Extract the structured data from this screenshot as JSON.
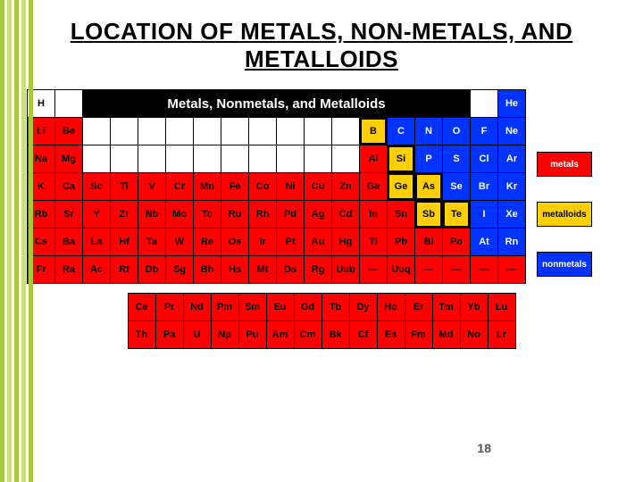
{
  "slide": {
    "title": "LOCATION OF METALS, NON-METALS, AND METALLOIDS",
    "page_number": "18",
    "chart_title": "Metals, Nonmetals, and Metalloids"
  },
  "colors": {
    "metal": "#ff0000",
    "nonmetal": "#0033ff",
    "metalloid": "#ffcf00",
    "hydrogen": "#ffffff",
    "bg_black": "#000000",
    "text_black": "#000000",
    "text_white": "#ffffff",
    "stripe_a": "#a8c93a",
    "stripe_b": "#c7e07a"
  },
  "stripes": [
    0,
    8,
    16,
    24,
    32
  ],
  "legend": [
    {
      "label": "metals",
      "color_key": "metal",
      "text": "text_white"
    },
    {
      "label": "metalloids",
      "color_key": "metalloid",
      "text": "text_black"
    },
    {
      "label": "nonmetals",
      "color_key": "nonmetal",
      "text": "text_white"
    }
  ],
  "main_grid": {
    "cols": 18,
    "rows": 7
  },
  "elements": [
    {
      "s": "H",
      "r": 1,
      "c": 1,
      "cat": "hydrogen"
    },
    {
      "s": "He",
      "r": 1,
      "c": 18,
      "cat": "nonmetal"
    },
    {
      "s": "Li",
      "r": 2,
      "c": 1,
      "cat": "metal"
    },
    {
      "s": "Be",
      "r": 2,
      "c": 2,
      "cat": "metal"
    },
    {
      "s": "B",
      "r": 2,
      "c": 13,
      "cat": "metalloid",
      "thick": true
    },
    {
      "s": "C",
      "r": 2,
      "c": 14,
      "cat": "nonmetal"
    },
    {
      "s": "N",
      "r": 2,
      "c": 15,
      "cat": "nonmetal"
    },
    {
      "s": "O",
      "r": 2,
      "c": 16,
      "cat": "nonmetal"
    },
    {
      "s": "F",
      "r": 2,
      "c": 17,
      "cat": "nonmetal"
    },
    {
      "s": "Ne",
      "r": 2,
      "c": 18,
      "cat": "nonmetal"
    },
    {
      "s": "Na",
      "r": 3,
      "c": 1,
      "cat": "metal"
    },
    {
      "s": "Mg",
      "r": 3,
      "c": 2,
      "cat": "metal"
    },
    {
      "s": "Al",
      "r": 3,
      "c": 13,
      "cat": "metal"
    },
    {
      "s": "Si",
      "r": 3,
      "c": 14,
      "cat": "metalloid",
      "thick": true
    },
    {
      "s": "P",
      "r": 3,
      "c": 15,
      "cat": "nonmetal"
    },
    {
      "s": "S",
      "r": 3,
      "c": 16,
      "cat": "nonmetal"
    },
    {
      "s": "Cl",
      "r": 3,
      "c": 17,
      "cat": "nonmetal"
    },
    {
      "s": "Ar",
      "r": 3,
      "c": 18,
      "cat": "nonmetal"
    },
    {
      "s": "K",
      "r": 4,
      "c": 1,
      "cat": "metal"
    },
    {
      "s": "Ca",
      "r": 4,
      "c": 2,
      "cat": "metal"
    },
    {
      "s": "Sc",
      "r": 4,
      "c": 3,
      "cat": "metal"
    },
    {
      "s": "Ti",
      "r": 4,
      "c": 4,
      "cat": "metal"
    },
    {
      "s": "V",
      "r": 4,
      "c": 5,
      "cat": "metal"
    },
    {
      "s": "Cr",
      "r": 4,
      "c": 6,
      "cat": "metal"
    },
    {
      "s": "Mn",
      "r": 4,
      "c": 7,
      "cat": "metal"
    },
    {
      "s": "Fe",
      "r": 4,
      "c": 8,
      "cat": "metal"
    },
    {
      "s": "Co",
      "r": 4,
      "c": 9,
      "cat": "metal"
    },
    {
      "s": "Ni",
      "r": 4,
      "c": 10,
      "cat": "metal"
    },
    {
      "s": "Cu",
      "r": 4,
      "c": 11,
      "cat": "metal"
    },
    {
      "s": "Zn",
      "r": 4,
      "c": 12,
      "cat": "metal"
    },
    {
      "s": "Ga",
      "r": 4,
      "c": 13,
      "cat": "metal"
    },
    {
      "s": "Ge",
      "r": 4,
      "c": 14,
      "cat": "metalloid",
      "thick": true
    },
    {
      "s": "As",
      "r": 4,
      "c": 15,
      "cat": "metalloid",
      "thick": true
    },
    {
      "s": "Se",
      "r": 4,
      "c": 16,
      "cat": "nonmetal"
    },
    {
      "s": "Br",
      "r": 4,
      "c": 17,
      "cat": "nonmetal"
    },
    {
      "s": "Kr",
      "r": 4,
      "c": 18,
      "cat": "nonmetal"
    },
    {
      "s": "Rb",
      "r": 5,
      "c": 1,
      "cat": "metal"
    },
    {
      "s": "Sr",
      "r": 5,
      "c": 2,
      "cat": "metal"
    },
    {
      "s": "Y",
      "r": 5,
      "c": 3,
      "cat": "metal"
    },
    {
      "s": "Zr",
      "r": 5,
      "c": 4,
      "cat": "metal"
    },
    {
      "s": "Nb",
      "r": 5,
      "c": 5,
      "cat": "metal"
    },
    {
      "s": "Mo",
      "r": 5,
      "c": 6,
      "cat": "metal"
    },
    {
      "s": "Tc",
      "r": 5,
      "c": 7,
      "cat": "metal"
    },
    {
      "s": "Ru",
      "r": 5,
      "c": 8,
      "cat": "metal"
    },
    {
      "s": "Rh",
      "r": 5,
      "c": 9,
      "cat": "metal"
    },
    {
      "s": "Pd",
      "r": 5,
      "c": 10,
      "cat": "metal"
    },
    {
      "s": "Ag",
      "r": 5,
      "c": 11,
      "cat": "metal"
    },
    {
      "s": "Cd",
      "r": 5,
      "c": 12,
      "cat": "metal"
    },
    {
      "s": "In",
      "r": 5,
      "c": 13,
      "cat": "metal"
    },
    {
      "s": "Sn",
      "r": 5,
      "c": 14,
      "cat": "metal"
    },
    {
      "s": "Sb",
      "r": 5,
      "c": 15,
      "cat": "metalloid",
      "thick": true
    },
    {
      "s": "Te",
      "r": 5,
      "c": 16,
      "cat": "metalloid",
      "thick": true
    },
    {
      "s": "I",
      "r": 5,
      "c": 17,
      "cat": "nonmetal"
    },
    {
      "s": "Xe",
      "r": 5,
      "c": 18,
      "cat": "nonmetal"
    },
    {
      "s": "Cs",
      "r": 6,
      "c": 1,
      "cat": "metal"
    },
    {
      "s": "Ba",
      "r": 6,
      "c": 2,
      "cat": "metal"
    },
    {
      "s": "La",
      "r": 6,
      "c": 3,
      "cat": "metal"
    },
    {
      "s": "Hf",
      "r": 6,
      "c": 4,
      "cat": "metal"
    },
    {
      "s": "Ta",
      "r": 6,
      "c": 5,
      "cat": "metal"
    },
    {
      "s": "W",
      "r": 6,
      "c": 6,
      "cat": "metal"
    },
    {
      "s": "Re",
      "r": 6,
      "c": 7,
      "cat": "metal"
    },
    {
      "s": "Os",
      "r": 6,
      "c": 8,
      "cat": "metal"
    },
    {
      "s": "Ir",
      "r": 6,
      "c": 9,
      "cat": "metal"
    },
    {
      "s": "Pt",
      "r": 6,
      "c": 10,
      "cat": "metal"
    },
    {
      "s": "Au",
      "r": 6,
      "c": 11,
      "cat": "metal"
    },
    {
      "s": "Hg",
      "r": 6,
      "c": 12,
      "cat": "metal"
    },
    {
      "s": "Tl",
      "r": 6,
      "c": 13,
      "cat": "metal"
    },
    {
      "s": "Pb",
      "r": 6,
      "c": 14,
      "cat": "metal"
    },
    {
      "s": "Bi",
      "r": 6,
      "c": 15,
      "cat": "metal"
    },
    {
      "s": "Po",
      "r": 6,
      "c": 16,
      "cat": "metal"
    },
    {
      "s": "At",
      "r": 6,
      "c": 17,
      "cat": "nonmetal"
    },
    {
      "s": "Rn",
      "r": 6,
      "c": 18,
      "cat": "nonmetal"
    },
    {
      "s": "Fr",
      "r": 7,
      "c": 1,
      "cat": "metal"
    },
    {
      "s": "Ra",
      "r": 7,
      "c": 2,
      "cat": "metal"
    },
    {
      "s": "Ac",
      "r": 7,
      "c": 3,
      "cat": "metal"
    },
    {
      "s": "Rf",
      "r": 7,
      "c": 4,
      "cat": "metal"
    },
    {
      "s": "Db",
      "r": 7,
      "c": 5,
      "cat": "metal"
    },
    {
      "s": "Sg",
      "r": 7,
      "c": 6,
      "cat": "metal"
    },
    {
      "s": "Bh",
      "r": 7,
      "c": 7,
      "cat": "metal"
    },
    {
      "s": "Hs",
      "r": 7,
      "c": 8,
      "cat": "metal"
    },
    {
      "s": "Mt",
      "r": 7,
      "c": 9,
      "cat": "metal"
    },
    {
      "s": "Ds",
      "r": 7,
      "c": 10,
      "cat": "metal"
    },
    {
      "s": "Rg",
      "r": 7,
      "c": 11,
      "cat": "metal"
    },
    {
      "s": "Uub",
      "r": 7,
      "c": 12,
      "cat": "metal"
    },
    {
      "s": "—",
      "r": 7,
      "c": 13,
      "cat": "metal"
    },
    {
      "s": "Uuq",
      "r": 7,
      "c": 14,
      "cat": "metal"
    },
    {
      "s": "—",
      "r": 7,
      "c": 15,
      "cat": "metal"
    },
    {
      "s": "—",
      "r": 7,
      "c": 16,
      "cat": "metal"
    },
    {
      "s": "—",
      "r": 7,
      "c": 17,
      "cat": "metal"
    },
    {
      "s": "—",
      "r": 7,
      "c": 18,
      "cat": "metal"
    }
  ],
  "main_blanks": [
    {
      "r": 1,
      "c": 2
    },
    {
      "r": 1,
      "c": 17
    },
    {
      "r": 2,
      "c": 3
    },
    {
      "r": 2,
      "c": 4
    },
    {
      "r": 2,
      "c": 5
    },
    {
      "r": 2,
      "c": 6
    },
    {
      "r": 2,
      "c": 7
    },
    {
      "r": 2,
      "c": 8
    },
    {
      "r": 2,
      "c": 9
    },
    {
      "r": 2,
      "c": 10
    },
    {
      "r": 2,
      "c": 11
    },
    {
      "r": 2,
      "c": 12
    },
    {
      "r": 3,
      "c": 3
    },
    {
      "r": 3,
      "c": 4
    },
    {
      "r": 3,
      "c": 5
    },
    {
      "r": 3,
      "c": 6
    },
    {
      "r": 3,
      "c": 7
    },
    {
      "r": 3,
      "c": 8
    },
    {
      "r": 3,
      "c": 9
    },
    {
      "r": 3,
      "c": 10
    },
    {
      "r": 3,
      "c": 11
    },
    {
      "r": 3,
      "c": 12
    }
  ],
  "fblock": [
    [
      "Ce",
      "Pr",
      "Nd",
      "Pm",
      "Sm",
      "Eu",
      "Gd",
      "Tb",
      "Dy",
      "Ho",
      "Er",
      "Tm",
      "Yb",
      "Lu"
    ],
    [
      "Th",
      "Pa",
      "U",
      "Np",
      "Pu",
      "Am",
      "Cm",
      "Bk",
      "Cf",
      "Es",
      "Fm",
      "Md",
      "No",
      "Lr"
    ]
  ]
}
